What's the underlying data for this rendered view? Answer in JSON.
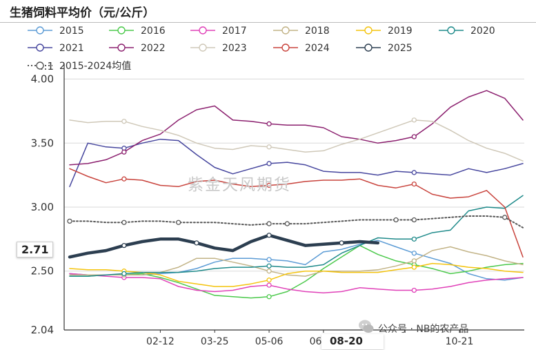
{
  "chart_data": {
    "type": "line",
    "title": "生猪饲料平均价（元/公斤）",
    "xlabel": "",
    "ylabel": "",
    "ylim": [
      2.04,
      4.1
    ],
    "yticks": [
      "2.04",
      "2.50",
      "3.00",
      "3.50",
      "4.00",
      "4.1"
    ],
    "x_ticks": [
      "02-12",
      "03-25",
      "05-06",
      "06-17",
      "08-20",
      "10-21"
    ],
    "x_tick_values": [
      10,
      16,
      22,
      28,
      37,
      43
    ],
    "x_range": [
      0,
      50
    ],
    "legend": "top",
    "grid": "horizontal",
    "highlight": {
      "y_value": "2.71",
      "x_label": "08-20"
    },
    "series": [
      {
        "name": "2015",
        "color": "#5b9bd5",
        "style": "solid",
        "width": 1.5,
        "x": [
          0,
          2,
          4,
          6,
          8,
          10,
          12,
          14,
          16,
          18,
          20,
          22,
          24,
          26,
          28,
          30,
          32,
          34,
          36,
          38,
          40,
          42,
          44,
          46,
          48,
          50
        ],
        "values": [
          2.48,
          2.47,
          2.47,
          2.47,
          2.47,
          2.48,
          2.49,
          2.52,
          2.57,
          2.6,
          2.6,
          2.59,
          2.58,
          2.55,
          2.65,
          2.67,
          2.71,
          2.74,
          2.69,
          2.64,
          2.6,
          2.56,
          2.48,
          2.44,
          2.43,
          2.45
        ]
      },
      {
        "name": "2016",
        "color": "#4bc94b",
        "style": "solid",
        "width": 1.5,
        "x": [
          0,
          2,
          4,
          6,
          8,
          10,
          12,
          14,
          16,
          18,
          20,
          22,
          24,
          26,
          28,
          30,
          32,
          34,
          36,
          38,
          40,
          42,
          44,
          46,
          48,
          50
        ],
        "values": [
          2.46,
          2.46,
          2.47,
          2.47,
          2.48,
          2.45,
          2.41,
          2.36,
          2.31,
          2.3,
          2.29,
          2.3,
          2.34,
          2.42,
          2.52,
          2.61,
          2.7,
          2.63,
          2.58,
          2.55,
          2.52,
          2.48,
          2.5,
          2.53,
          2.55,
          2.56
        ]
      },
      {
        "name": "2017",
        "color": "#e040b8",
        "style": "solid",
        "width": 1.5,
        "x": [
          0,
          2,
          4,
          6,
          8,
          10,
          12,
          14,
          16,
          18,
          20,
          22,
          24,
          26,
          28,
          30,
          32,
          34,
          36,
          38,
          40,
          42,
          44,
          46,
          48,
          50
        ],
        "values": [
          2.48,
          2.47,
          2.46,
          2.45,
          2.45,
          2.44,
          2.38,
          2.35,
          2.34,
          2.35,
          2.38,
          2.39,
          2.36,
          2.34,
          2.33,
          2.34,
          2.37,
          2.36,
          2.35,
          2.35,
          2.36,
          2.38,
          2.41,
          2.43,
          2.44,
          2.45
        ]
      },
      {
        "name": "2018",
        "color": "#c2b386",
        "style": "solid",
        "width": 1.5,
        "x": [
          0,
          2,
          4,
          6,
          8,
          10,
          12,
          14,
          16,
          18,
          20,
          22,
          24,
          26,
          28,
          30,
          32,
          34,
          36,
          38,
          40,
          42,
          44,
          46,
          48,
          50
        ],
        "values": [
          2.47,
          2.47,
          2.47,
          2.47,
          2.47,
          2.49,
          2.53,
          2.6,
          2.6,
          2.57,
          2.54,
          2.5,
          2.47,
          2.46,
          2.5,
          2.5,
          2.5,
          2.51,
          2.54,
          2.58,
          2.66,
          2.69,
          2.65,
          2.62,
          2.58,
          2.55
        ]
      },
      {
        "name": "2019",
        "color": "#f4c30c",
        "style": "solid",
        "width": 1.5,
        "x": [
          0,
          2,
          4,
          6,
          8,
          10,
          12,
          14,
          16,
          18,
          20,
          22,
          24,
          26,
          28,
          30,
          32,
          34,
          36,
          38,
          40,
          42,
          44,
          46,
          48,
          50
        ],
        "values": [
          2.52,
          2.51,
          2.51,
          2.5,
          2.49,
          2.47,
          2.42,
          2.4,
          2.38,
          2.38,
          2.4,
          2.43,
          2.48,
          2.5,
          2.5,
          2.49,
          2.49,
          2.49,
          2.51,
          2.53,
          2.56,
          2.55,
          2.53,
          2.52,
          2.5,
          2.49
        ]
      },
      {
        "name": "2020",
        "color": "#1e8a8a",
        "style": "solid",
        "width": 1.5,
        "x": [
          0,
          2,
          4,
          6,
          8,
          10,
          12,
          14,
          16,
          18,
          20,
          22,
          24,
          26,
          28,
          30,
          32,
          34,
          36,
          38,
          40,
          42,
          44,
          46,
          48,
          50
        ],
        "values": [
          2.46,
          2.46,
          2.47,
          2.48,
          2.49,
          2.49,
          2.49,
          2.5,
          2.52,
          2.53,
          2.53,
          2.54,
          2.53,
          2.53,
          2.55,
          2.64,
          2.7,
          2.76,
          2.75,
          2.75,
          2.8,
          2.82,
          2.97,
          3.0,
          2.99,
          3.09
        ]
      },
      {
        "name": "2021",
        "color": "#46469e",
        "style": "solid",
        "width": 1.5,
        "x": [
          0,
          2,
          4,
          6,
          8,
          10,
          12,
          14,
          16,
          18,
          20,
          22,
          24,
          26,
          28,
          30,
          32,
          34,
          36,
          38,
          40,
          42,
          44,
          46,
          48,
          50
        ],
        "values": [
          3.16,
          3.5,
          3.47,
          3.46,
          3.5,
          3.53,
          3.52,
          3.41,
          3.31,
          3.26,
          3.3,
          3.34,
          3.35,
          3.33,
          3.28,
          3.27,
          3.27,
          3.25,
          3.28,
          3.27,
          3.26,
          3.25,
          3.3,
          3.27,
          3.3,
          3.34
        ]
      },
      {
        "name": "2022",
        "color": "#8b1f6e",
        "style": "solid",
        "width": 1.5,
        "x": [
          0,
          2,
          4,
          6,
          8,
          10,
          12,
          14,
          16,
          18,
          20,
          22,
          24,
          26,
          28,
          30,
          32,
          34,
          36,
          38,
          40,
          42,
          44,
          46,
          48,
          50
        ],
        "values": [
          3.33,
          3.34,
          3.37,
          3.43,
          3.52,
          3.57,
          3.68,
          3.76,
          3.79,
          3.68,
          3.67,
          3.65,
          3.64,
          3.64,
          3.62,
          3.55,
          3.53,
          3.5,
          3.52,
          3.55,
          3.65,
          3.78,
          3.86,
          3.91,
          3.85,
          3.68
        ]
      },
      {
        "name": "2023",
        "color": "#cfc8b8",
        "style": "solid",
        "width": 1.5,
        "x": [
          0,
          2,
          4,
          6,
          8,
          10,
          12,
          14,
          16,
          18,
          20,
          22,
          24,
          26,
          28,
          30,
          32,
          34,
          36,
          38,
          40,
          42,
          44,
          46,
          48,
          50
        ],
        "values": [
          3.68,
          3.66,
          3.67,
          3.67,
          3.63,
          3.6,
          3.56,
          3.5,
          3.46,
          3.45,
          3.48,
          3.47,
          3.45,
          3.43,
          3.44,
          3.49,
          3.53,
          3.58,
          3.63,
          3.68,
          3.67,
          3.6,
          3.52,
          3.46,
          3.42,
          3.36
        ]
      },
      {
        "name": "2024",
        "color": "#c8423b",
        "style": "solid",
        "width": 1.5,
        "x": [
          0,
          2,
          4,
          6,
          8,
          10,
          12,
          14,
          16,
          18,
          20,
          22,
          24,
          26,
          28,
          30,
          32,
          34,
          36,
          38,
          40,
          42,
          44,
          46,
          48,
          50
        ],
        "values": [
          3.3,
          3.24,
          3.19,
          3.22,
          3.21,
          3.17,
          3.16,
          3.2,
          3.21,
          3.18,
          3.16,
          3.17,
          3.18,
          3.2,
          3.21,
          3.21,
          3.22,
          3.17,
          3.15,
          3.18,
          3.1,
          3.07,
          3.08,
          3.13,
          3.0,
          2.61
        ]
      },
      {
        "name": "2025",
        "color": "#2c3e50",
        "style": "solid",
        "width": 4.5,
        "x": [
          0,
          2,
          4,
          6,
          8,
          10,
          12,
          14,
          16,
          18,
          20,
          22,
          24,
          26,
          28,
          30,
          32,
          34
        ],
        "values": [
          2.61,
          2.64,
          2.66,
          2.7,
          2.73,
          2.75,
          2.75,
          2.72,
          2.68,
          2.66,
          2.73,
          2.78,
          2.74,
          2.7,
          2.71,
          2.72,
          2.73,
          2.72
        ]
      },
      {
        "name": "2015-2024均值",
        "color": "#555555",
        "style": "dotted",
        "width": 2,
        "x": [
          0,
          2,
          4,
          6,
          8,
          10,
          12,
          14,
          16,
          18,
          20,
          22,
          24,
          26,
          28,
          30,
          32,
          34,
          36,
          38,
          40,
          42,
          44,
          46,
          48,
          50
        ],
        "values": [
          2.89,
          2.89,
          2.88,
          2.88,
          2.89,
          2.89,
          2.88,
          2.88,
          2.88,
          2.87,
          2.86,
          2.87,
          2.87,
          2.87,
          2.88,
          2.89,
          2.9,
          2.9,
          2.9,
          2.9,
          2.91,
          2.92,
          2.93,
          2.93,
          2.92,
          2.84
        ]
      }
    ]
  },
  "watermark": "紫金天风期货",
  "source": "公众号 · NB的农产品"
}
